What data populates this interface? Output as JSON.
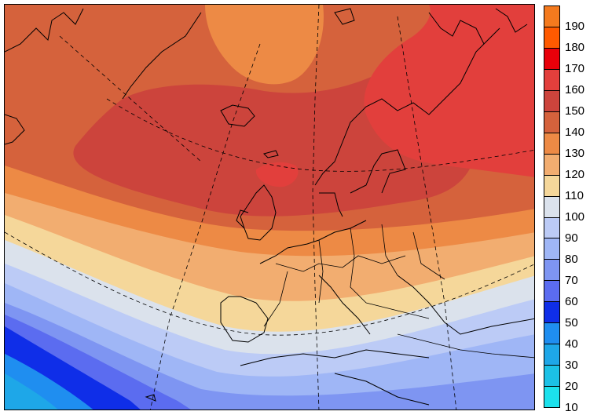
{
  "legend": {
    "colors": [
      "#f47a1e",
      "#ff5a00",
      "#e8000a",
      "#e23f3c",
      "#cc443c",
      "#d5623c",
      "#ed8a45",
      "#f2ad70",
      "#f5d79a",
      "#dbe2ec",
      "#bccbf6",
      "#9fb6f6",
      "#7e95f2",
      "#5b6cf0",
      "#0f2ee8",
      "#1f8ef0",
      "#1ea7e8",
      "#1cc1e6",
      "#1ce1ec"
    ],
    "labels": [
      "190",
      "180",
      "170",
      "160",
      "150",
      "140",
      "130",
      "120",
      "110",
      "100",
      "90",
      "80",
      "70",
      "60",
      "50",
      "40",
      "30",
      "20",
      "10"
    ]
  }
}
